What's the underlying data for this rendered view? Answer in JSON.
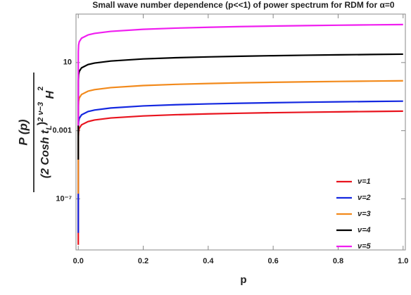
{
  "chart_data": {
    "type": "line",
    "title": "Small wave number dependence (p<<1) of power spectrum for RDM for α=0",
    "xlabel": "p",
    "ylabel": {
      "numerator": "P (p)",
      "denominator": [
        "(2 Cosh t",
        "L",
        ")",
        "2 ν−3",
        " H",
        "2"
      ]
    },
    "x": [
      1e-09,
      1e-06,
      0.0001,
      0.001,
      0.003,
      0.01,
      0.03,
      0.05,
      0.1,
      0.2,
      0.3,
      0.4,
      0.5,
      0.6,
      0.7,
      0.8,
      0.9,
      1.0
    ],
    "series": [
      {
        "name": "ν=1",
        "color": "#e8141e",
        "values": [
          2e-10,
          5.57e-05,
          0.000351,
          0.000883,
          0.00137,
          0.00221,
          0.00344,
          0.00423,
          0.00557,
          0.00735,
          0.00865,
          0.0097,
          0.0106,
          0.0114,
          0.0121,
          0.0128,
          0.0134,
          0.014
        ]
      },
      {
        "name": "ν=2",
        "color": "#1428e0",
        "values": [
          1e-09,
          0.000215,
          0.00136,
          0.00341,
          0.00529,
          0.00853,
          0.0133,
          0.0163,
          0.0215,
          0.0284,
          0.0334,
          0.0374,
          0.0409,
          0.044,
          0.0468,
          0.0494,
          0.0518,
          0.054
        ]
      },
      {
        "name": "ν=3",
        "color": "#f28a1c",
        "values": [
          2e-07,
          0.00338,
          0.0213,
          0.0536,
          0.0833,
          0.134,
          0.209,
          0.257,
          0.338,
          0.446,
          0.525,
          0.589,
          0.644,
          0.693,
          0.737,
          0.778,
          0.815,
          0.85
        ]
      },
      {
        "name": "ν=4",
        "color": "#000000",
        "values": [
          2e-05,
          0.123,
          0.778,
          1.96,
          3.04,
          4.9,
          7.63,
          9.36,
          12.3,
          16.3,
          19.2,
          21.5,
          23.5,
          25.3,
          26.9,
          28.4,
          29.7,
          31
        ]
      },
      {
        "name": "ν=5",
        "color": "#f01ef0",
        "values": [
          0.002,
          6.8,
          42.7,
          107,
          167,
          269,
          418,
          513,
          677,
          893,
          1051,
          1178,
          1289,
          1386,
          1474,
          1556,
          1630,
          1700
        ]
      }
    ],
    "xlim": [
      -0.007,
      1.007
    ],
    "xticks": [
      {
        "value": 0,
        "label": "0.0"
      },
      0.2,
      0.4,
      0.6,
      0.8,
      {
        "value": 1,
        "label": "1.0"
      }
    ],
    "ylim": [
      1e-10,
      7000
    ],
    "yticks": [
      {
        "value": 1e-07,
        "label": "10⁻⁷"
      },
      0.001,
      10
    ],
    "log_y": true,
    "grid": false,
    "legend": "lower-right"
  }
}
